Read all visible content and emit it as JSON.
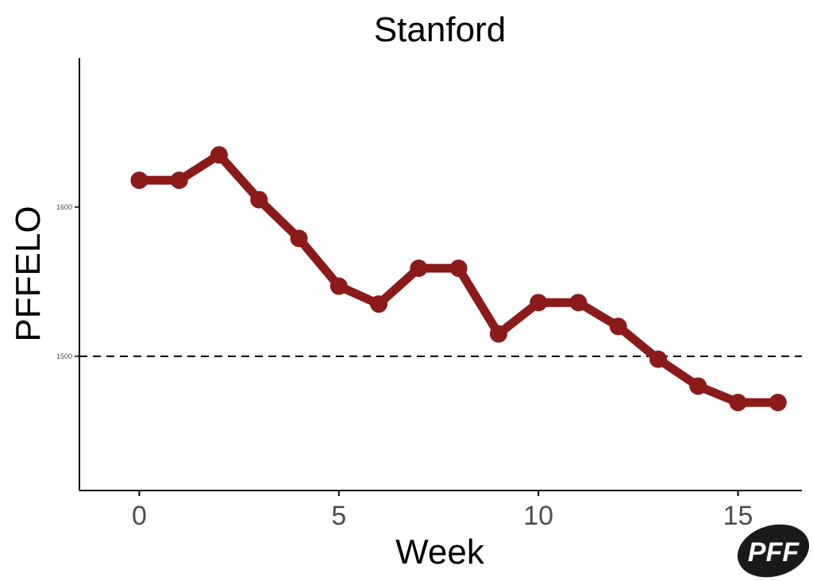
{
  "chart_data": {
    "type": "line",
    "title": "Stanford",
    "xlabel": "Week",
    "ylabel": "PFFELO",
    "x": [
      0,
      1,
      2,
      3,
      4,
      5,
      6,
      7,
      8,
      9,
      10,
      11,
      12,
      13,
      14,
      15,
      16
    ],
    "series": [
      {
        "values": [
          1618,
          1618,
          1635,
          1605,
          1579,
          1547,
          1535,
          1559,
          1559,
          1515,
          1536,
          1536,
          1520,
          1498,
          1480,
          1469,
          1469
        ]
      }
    ],
    "reference_line": {
      "y": 1500,
      "style": "dashed"
    },
    "xlim": [
      -1.5,
      16.6
    ],
    "ylim": [
      1410,
      1700
    ],
    "xticks": [
      0,
      5,
      10,
      15
    ],
    "yticks": [
      1500,
      1600
    ],
    "grid": false,
    "legend": "none",
    "colors": {
      "series": "#8b1a1a",
      "axis": "#000000",
      "tick_text": "#4d4d4d",
      "reference": "#000000",
      "logo": "#1a1a1a"
    }
  },
  "logo": {
    "text": "PFF",
    "icon": "pff-logo-icon"
  }
}
